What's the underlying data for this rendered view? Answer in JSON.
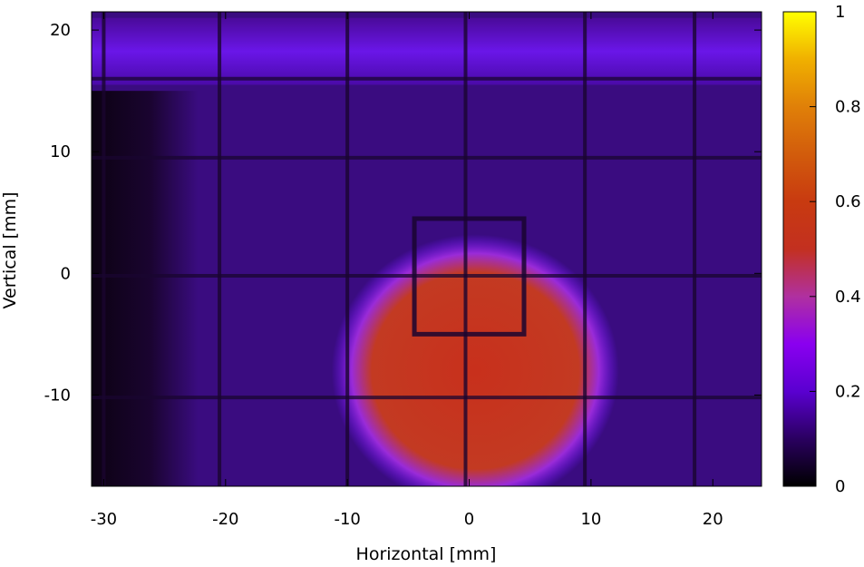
{
  "chart_data": {
    "type": "heatmap",
    "title": "",
    "xlabel": "Horizontal [mm]",
    "ylabel": "Vertical [mm]",
    "xlim": [
      -31,
      24
    ],
    "ylim": [
      -17.5,
      21.5
    ],
    "x_ticks": [
      {
        "value": -30,
        "label": "-30"
      },
      {
        "value": -20,
        "label": "-20"
      },
      {
        "value": -10,
        "label": "-10"
      },
      {
        "value": 0,
        "label": "0"
      },
      {
        "value": 10,
        "label": "10"
      },
      {
        "value": 20,
        "label": "20"
      }
    ],
    "y_ticks": [
      {
        "value": -10,
        "label": "-10"
      },
      {
        "value": 0,
        "label": "0"
      },
      {
        "value": 10,
        "label": "10"
      },
      {
        "value": 20,
        "label": "20"
      }
    ],
    "colorbar": {
      "range": [
        0,
        1
      ],
      "palette": "black-purple-red-yellow",
      "ticks": [
        {
          "value": 0,
          "label": "0"
        },
        {
          "value": 0.2,
          "label": "0.2"
        },
        {
          "value": 0.4,
          "label": "0.4"
        },
        {
          "value": 0.6,
          "label": "0.6"
        },
        {
          "value": 0.8,
          "label": "0.8"
        },
        {
          "value": 1,
          "label": "1"
        }
      ]
    },
    "intensity_regions": [
      {
        "region": "background",
        "x_range": [
          -24,
          23
        ],
        "y_range": [
          -17.5,
          15
        ],
        "value": 0.16
      },
      {
        "region": "dark-left-edge",
        "x_range": [
          -31,
          -24
        ],
        "y_range": [
          -17.5,
          15
        ],
        "value": 0.02
      },
      {
        "region": "top-bright-band",
        "x_range": [
          -31,
          24
        ],
        "y_range": [
          15.5,
          21
        ],
        "value": 0.2
      },
      {
        "region": "beam-spot",
        "center": [
          0.5,
          -8
        ],
        "radius_x": 10,
        "radius_y": 9.5,
        "value": 0.48
      }
    ],
    "grid_wires_x": [
      -30,
      -20.5,
      -10,
      -0.3,
      9.5,
      18.5
    ],
    "grid_wires_y": [
      -10.2,
      -0.2,
      9.5,
      16
    ],
    "inner_frame": {
      "x_range": [
        -4.5,
        4.5
      ],
      "y_range": [
        -5,
        4.5
      ]
    },
    "grid": false
  }
}
